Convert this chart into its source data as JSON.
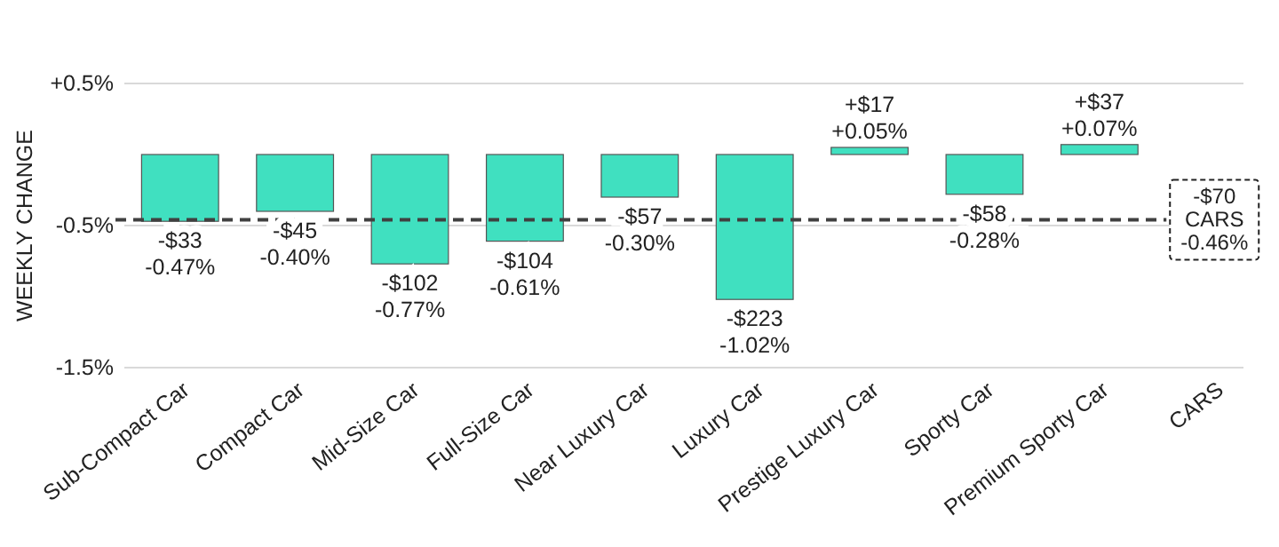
{
  "chart_data": {
    "type": "bar",
    "ylabel": "WEEKLY CHANGE",
    "categories": [
      "Sub-Compact Car",
      "Compact Car",
      "Mid-Size Car",
      "Full-Size Car",
      "Near Luxury Car",
      "Luxury Car",
      "Prestige Luxury Car",
      "Sporty Car",
      "Premium Sporty Car",
      "CARS"
    ],
    "values": [
      -0.47,
      -0.4,
      -0.77,
      -0.61,
      -0.3,
      -1.02,
      0.05,
      -0.28,
      0.07,
      null
    ],
    "value_labels": [
      "-$33\n-0.47%",
      "-$45\n-0.40%",
      "-$102\n-0.77%",
      "-$104\n-0.61%",
      "-$57\n-0.30%",
      "-$223\n-1.02%",
      "+$17\n+0.05%",
      "-$58\n-0.28%",
      "+$37\n+0.07%",
      null
    ],
    "color": "#40e0c0",
    "ylim": [
      -1.5,
      0.5
    ],
    "yticks": [
      {
        "value": 0.5,
        "label": "+0.5%"
      },
      {
        "value": -0.5,
        "label": "-0.5%"
      },
      {
        "value": -1.5,
        "label": "-1.5%"
      }
    ],
    "grid": "y",
    "ref_lines": [
      {
        "axis": "y",
        "value": -0.46,
        "label": "-$70\nCARS\n-0.46%",
        "color": "#404040",
        "line_style": "dashed"
      }
    ]
  }
}
